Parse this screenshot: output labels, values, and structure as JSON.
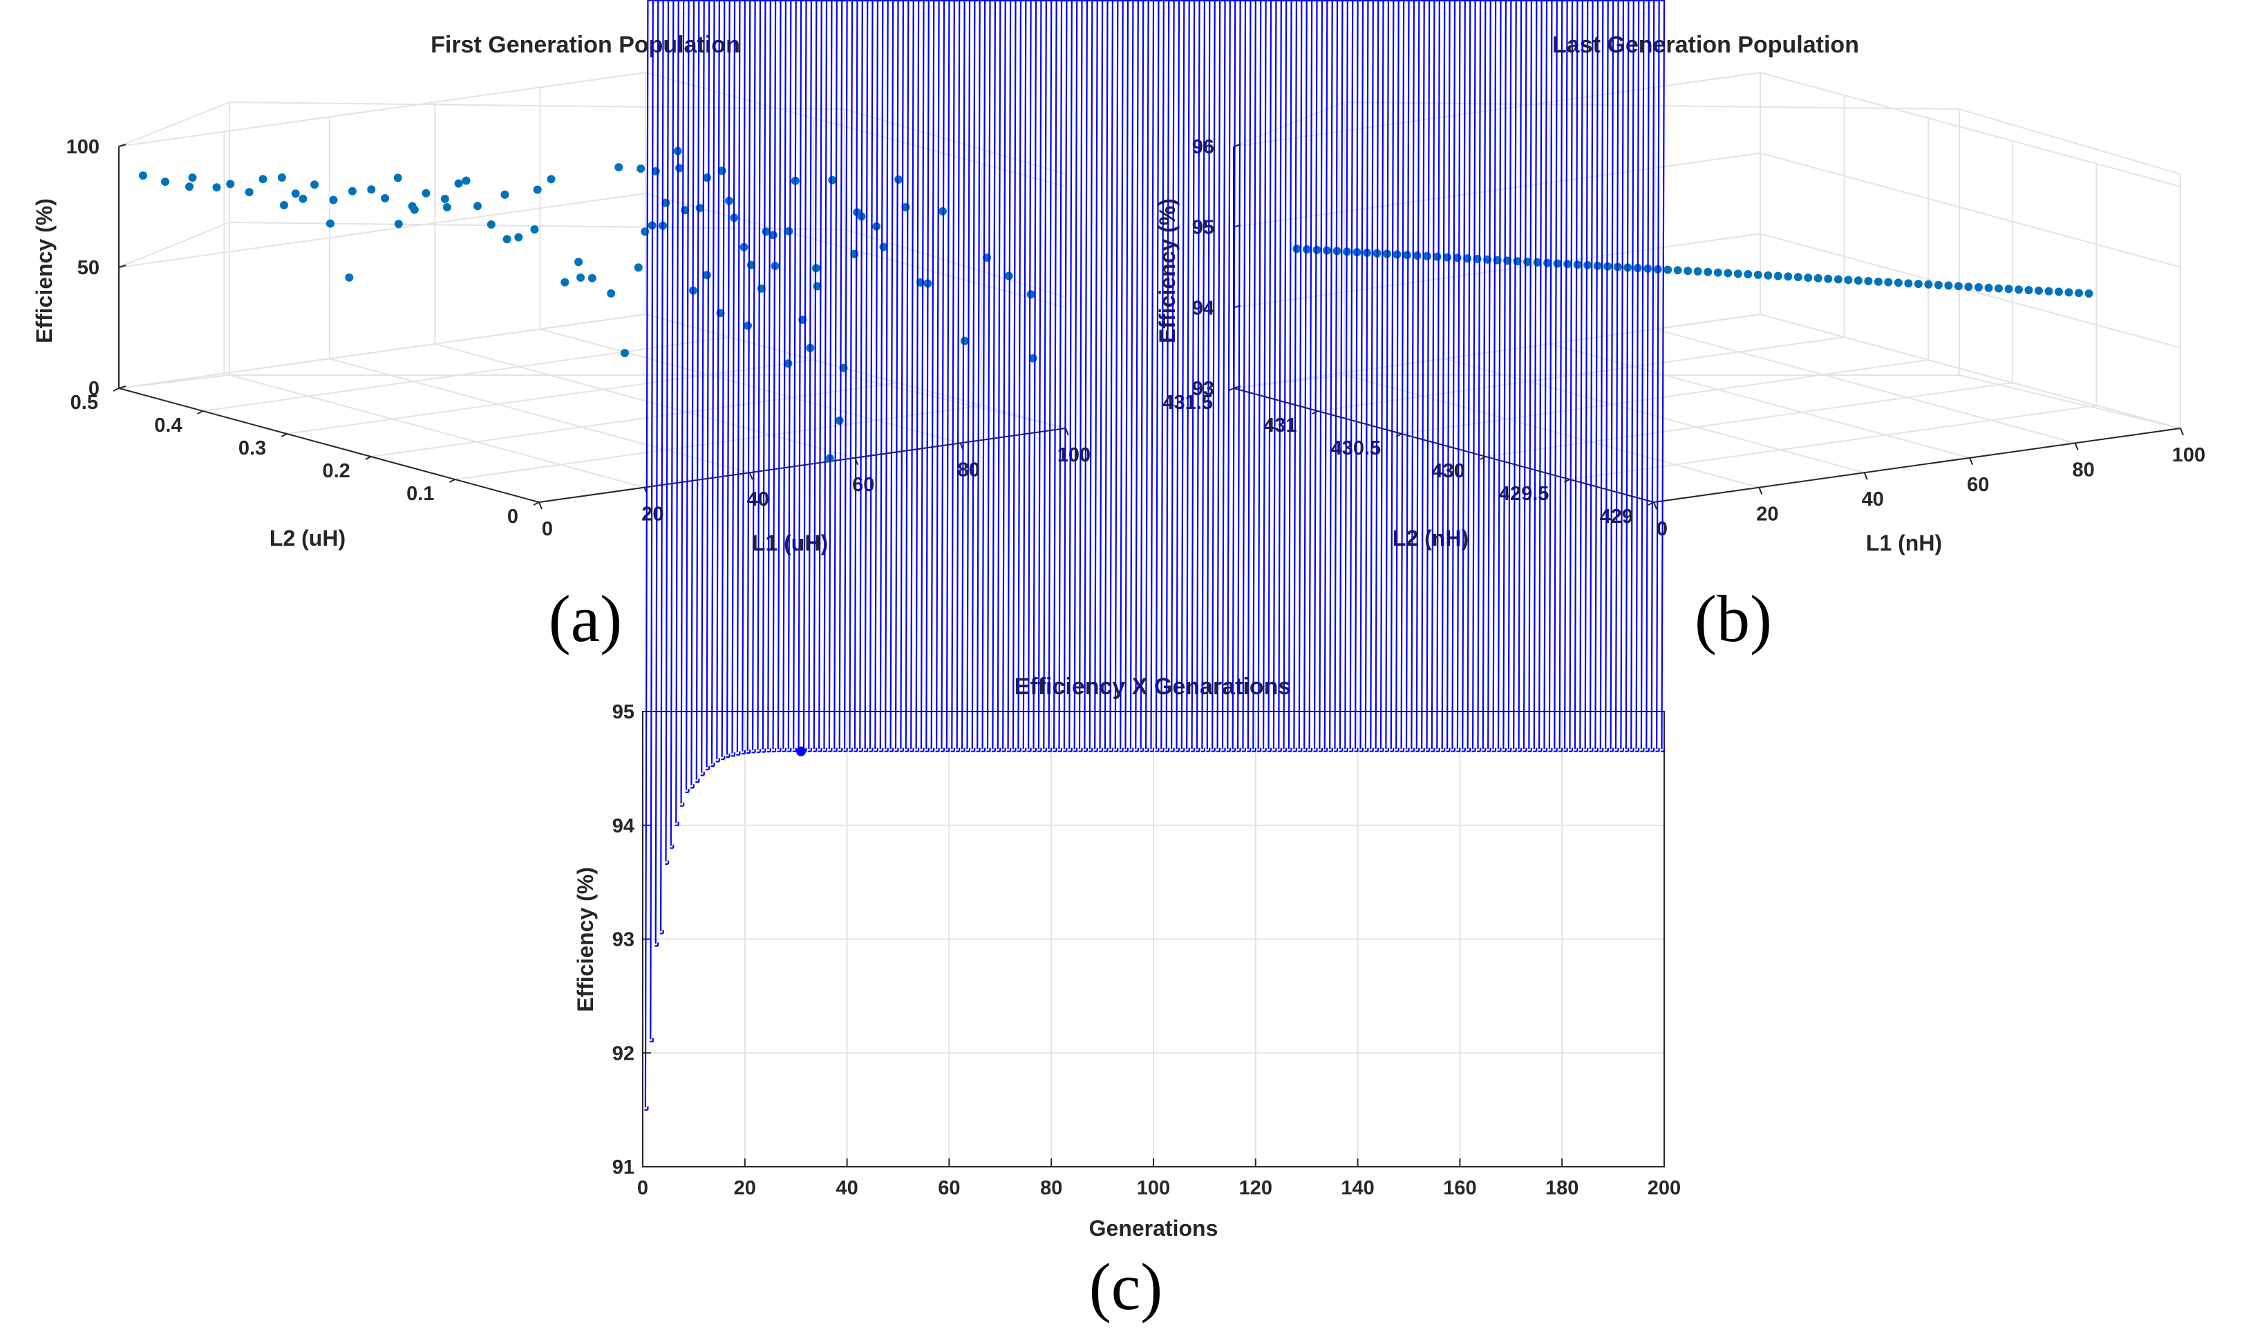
{
  "chart_data": [
    {
      "id": "a",
      "type": "scatter3d",
      "title": "First Generation Population",
      "caption": "(a)",
      "xlabel": "L1 (uH)",
      "ylabel": "L2 (uH)",
      "zlabel": "Efficiency (%)",
      "xlim": [
        0,
        100
      ],
      "ylim": [
        0,
        0.5
      ],
      "zlim": [
        0,
        100
      ],
      "xticks": [
        "0",
        "20",
        "40",
        "60",
        "80",
        "100"
      ],
      "yticks": [
        "0",
        "0.1",
        "0.2",
        "0.3",
        "0.4",
        "0.5"
      ],
      "zticks": [
        "0",
        "50",
        "100"
      ],
      "points": [
        [
          3,
          0.49,
          88
        ],
        [
          4,
          0.47,
          87
        ],
        [
          6,
          0.45,
          90
        ],
        [
          7,
          0.46,
          85
        ],
        [
          9,
          0.44,
          86
        ],
        [
          10,
          0.43,
          88
        ],
        [
          12,
          0.42,
          85
        ],
        [
          13,
          0.41,
          91
        ],
        [
          15,
          0.4,
          92
        ],
        [
          16,
          0.39,
          86
        ],
        [
          17,
          0.41,
          79
        ],
        [
          18,
          0.38,
          90
        ],
        [
          19,
          0.4,
          82
        ],
        [
          20,
          0.37,
          84
        ],
        [
          21,
          0.38,
          73
        ],
        [
          22,
          0.36,
          88
        ],
        [
          23,
          0.37,
          51
        ],
        [
          24,
          0.35,
          89
        ],
        [
          25,
          0.34,
          86
        ],
        [
          26,
          0.33,
          76
        ],
        [
          27,
          0.32,
          84
        ],
        [
          28,
          0.31,
          90
        ],
        [
          29,
          0.33,
          81
        ],
        [
          30,
          0.3,
          88
        ],
        [
          31,
          0.29,
          95
        ],
        [
          32,
          0.31,
          83
        ],
        [
          33,
          0.28,
          86
        ],
        [
          34,
          0.27,
          79
        ],
        [
          35,
          0.26,
          92
        ],
        [
          36,
          0.25,
          75
        ],
        [
          37,
          0.27,
          72
        ],
        [
          38,
          0.24,
          95
        ],
        [
          39,
          0.23,
          100
        ],
        [
          40,
          0.22,
          58
        ],
        [
          41,
          0.21,
          67
        ],
        [
          42,
          0.2,
          61
        ],
        [
          43,
          0.22,
          59
        ],
        [
          44,
          0.19,
          55
        ],
        [
          45,
          0.18,
          31
        ],
        [
          46,
          0.17,
          67
        ],
        [
          47,
          0.16,
          85
        ],
        [
          48,
          0.15,
          95
        ],
        [
          49,
          0.14,
          110
        ],
        [
          50,
          0.13,
          60
        ],
        [
          51,
          0.12,
          67
        ],
        [
          52,
          0.11,
          52
        ],
        [
          53,
          0.1,
          92
        ],
        [
          54,
          0.09,
          48
        ],
        [
          55,
          0.08,
          64
        ],
        [
          56,
          0.07,
          74
        ],
        [
          57,
          0.06,
          89
        ],
        [
          58,
          0.05,
          53
        ],
        [
          59,
          0.04,
          75
        ],
        [
          60,
          0.03,
          -3
        ],
        [
          61,
          0.02,
          35
        ],
        [
          62,
          0.01,
          100
        ],
        [
          63,
          0.3,
          91
        ],
        [
          64,
          0.28,
          92
        ],
        [
          65,
          0.26,
          70
        ],
        [
          66,
          0.24,
          78
        ],
        [
          67,
          0.22,
          93
        ],
        [
          68,
          0.2,
          85
        ],
        [
          69,
          0.18,
          60
        ],
        [
          70,
          0.16,
          74
        ],
        [
          71,
          0.14,
          98
        ],
        [
          72,
          0.12,
          56
        ],
        [
          73,
          0.1,
          2
        ],
        [
          74,
          0.08,
          88
        ],
        [
          75,
          0.06,
          77
        ],
        [
          76,
          0.04,
          95
        ],
        [
          77,
          0.02,
          65
        ],
        [
          78,
          0.35,
          80
        ],
        [
          79,
          0.33,
          90
        ],
        [
          80,
          0.31,
          68
        ],
        [
          81,
          0.29,
          85
        ],
        [
          82,
          0.27,
          55
        ],
        [
          83,
          0.25,
          63
        ],
        [
          84,
          0.23,
          10
        ],
        [
          85,
          0.21,
          18
        ],
        [
          86,
          0.19,
          89
        ],
        [
          87,
          0.17,
          60
        ],
        [
          88,
          0.15,
          73
        ],
        [
          89,
          0.13,
          94
        ],
        [
          90,
          0.11,
          53
        ],
        [
          91,
          0.09,
          84
        ],
        [
          92,
          0.07,
          32
        ],
        [
          93,
          0.05,
          68
        ],
        [
          94,
          0.03,
          62
        ],
        [
          95,
          0.01,
          56
        ],
        [
          97,
          0.02,
          28
        ],
        [
          50,
          0.4,
          80
        ],
        [
          45,
          0.45,
          78
        ],
        [
          55,
          0.35,
          63
        ],
        [
          60,
          0.25,
          70
        ]
      ]
    },
    {
      "id": "b",
      "type": "scatter3d",
      "title": "Last Generation Population",
      "caption": "(b)",
      "xlabel": "L1 (nH)",
      "ylabel": "L2 (nH)",
      "zlabel": "Efficiency (%)",
      "xlim": [
        0,
        100
      ],
      "ylim": [
        429,
        431.5
      ],
      "zlim": [
        93,
        96
      ],
      "xticks": [
        "0",
        "20",
        "40",
        "60",
        "80",
        "100"
      ],
      "yticks": [
        "429",
        "429.5",
        "430",
        "430.5",
        "431",
        "431.5"
      ],
      "zticks": [
        "93",
        "94",
        "95",
        "96"
      ],
      "line_points": {
        "count": 80,
        "start": [
          12,
          431.5,
          94.62
        ],
        "end": [
          89,
          429.2,
          94.66
        ]
      }
    },
    {
      "id": "c",
      "type": "line",
      "title": "Efficiency X Genarations",
      "caption": "(c)",
      "xlabel": "Generations",
      "ylabel": "Efficiency (%)",
      "xlim": [
        0,
        200
      ],
      "ylim": [
        91,
        95
      ],
      "xticks": [
        "0",
        "20",
        "40",
        "60",
        "80",
        "100",
        "120",
        "140",
        "160",
        "180",
        "200"
      ],
      "yticks": [
        "91",
        "92",
        "93",
        "94",
        "95"
      ],
      "marker": "*",
      "color": "#0000ff",
      "highlight_generation": 31,
      "series": [
        {
          "name": "Efficiency",
          "x_start": 1,
          "x_step": 1,
          "values": [
            91.5,
            92.1,
            92.94,
            93.05,
            93.66,
            93.8,
            94.0,
            94.17,
            94.29,
            94.33,
            94.38,
            94.44,
            94.49,
            94.52,
            94.56,
            94.58,
            94.6,
            94.61,
            94.62,
            94.63,
            94.635,
            94.64,
            94.642,
            94.645,
            94.647,
            94.648,
            94.649,
            94.65,
            94.65,
            94.65,
            94.65
          ],
          "plateau": 94.65,
          "x_end": 200
        }
      ]
    }
  ]
}
